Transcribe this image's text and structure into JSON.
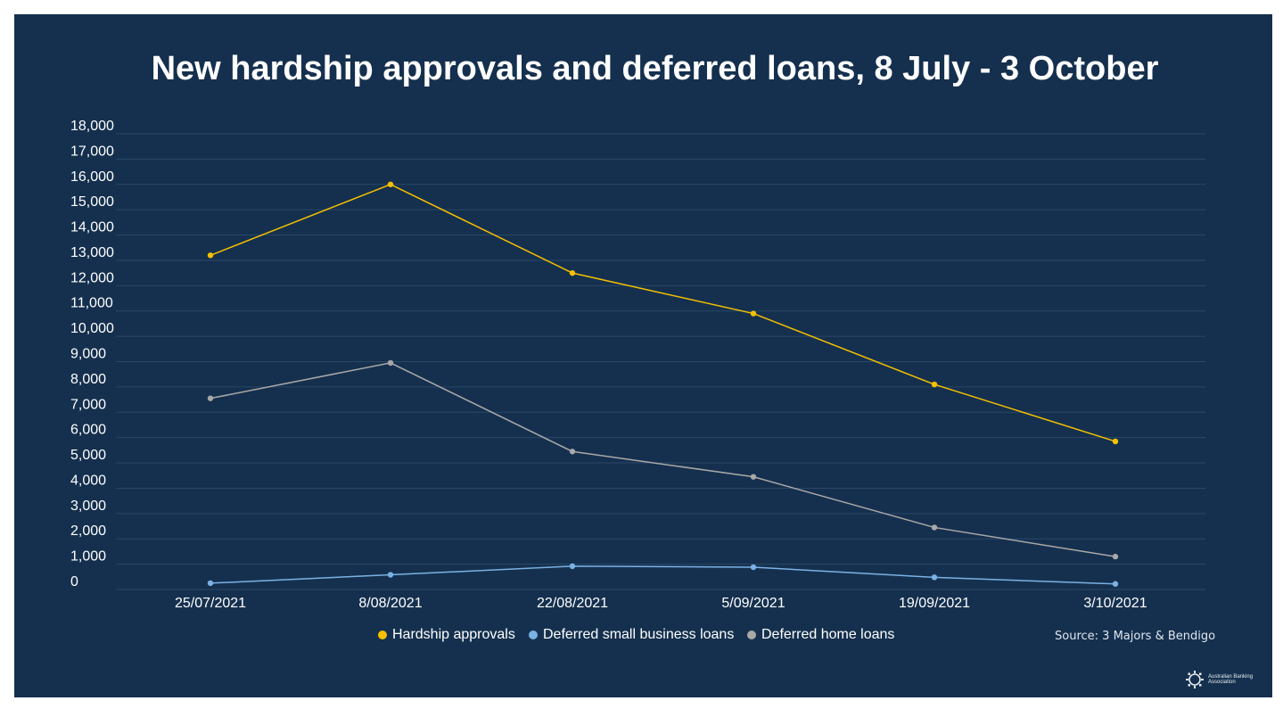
{
  "chart_data": {
    "type": "line",
    "title": "New hardship approvals and deferred loans, 8 July - 3 October",
    "xlabel": "",
    "ylabel": "",
    "ylim": [
      0,
      18000
    ],
    "yticks": [
      "0",
      "1,000",
      "2,000",
      "3,000",
      "4,000",
      "5,000",
      "6,000",
      "7,000",
      "8,000",
      "9,000",
      "10,000",
      "11,000",
      "12,000",
      "13,000",
      "14,000",
      "15,000",
      "16,000",
      "17,000",
      "18,000"
    ],
    "categories": [
      "25/07/2021",
      "8/08/2021",
      "22/08/2021",
      "5/09/2021",
      "19/09/2021",
      "3/10/2021"
    ],
    "series": [
      {
        "name": "Hardship approvals",
        "color": "#f5c000",
        "values": [
          13200,
          16000,
          12500,
          10900,
          8100,
          5850
        ]
      },
      {
        "name": "Deferred small business loans",
        "color": "#7ab2e6",
        "values": [
          250,
          580,
          920,
          880,
          480,
          220
        ]
      },
      {
        "name": "Deferred home loans",
        "color": "#a8a8a8",
        "values": [
          7550,
          8950,
          5450,
          4450,
          2450,
          1300
        ]
      }
    ],
    "grid": true,
    "legend": "bottom",
    "source": "Source: 3 Majors & Bendigo"
  },
  "logo": {
    "text": "Australian Banking Association"
  }
}
